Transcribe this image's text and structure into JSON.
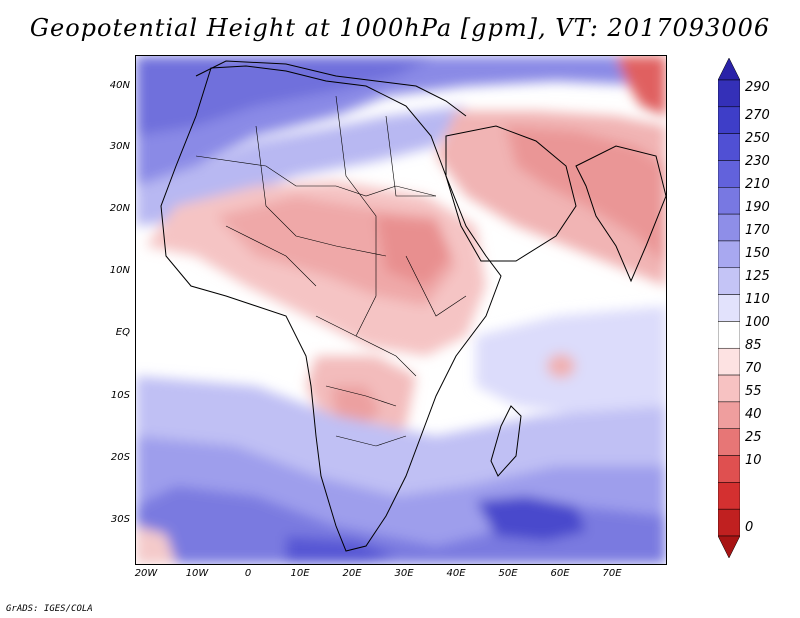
{
  "title": "Geopotential Height at 1000hPa [gpm], VT: 2017093006",
  "credit": "GrADS: IGES/COLA",
  "map": {
    "variable": "Geopotential Height at 1000hPa",
    "units": "gpm",
    "valid_time": "2017093006",
    "region": "Africa, Arabian Peninsula and South Asia",
    "lon_range": [
      -23,
      79
    ],
    "lat_range": [
      -37,
      45
    ],
    "longitude_labels": [
      "20W",
      "10W",
      "0",
      "10E",
      "20E",
      "30E",
      "40E",
      "50E",
      "60E",
      "70E"
    ],
    "longitude_values": [
      -20,
      -10,
      0,
      10,
      20,
      30,
      40,
      50,
      60,
      70
    ],
    "latitude_labels": [
      "40N",
      "30N",
      "20N",
      "10N",
      "EQ",
      "10S",
      "20S",
      "30S"
    ],
    "latitude_values": [
      40,
      30,
      20,
      10,
      0,
      -10,
      -20,
      -30
    ]
  },
  "colorbar": {
    "levels": [
      "290",
      "270",
      "250",
      "230",
      "210",
      "190",
      "170",
      "150",
      "125",
      "110",
      "100",
      "85",
      "70",
      "55",
      "40",
      "25",
      "10",
      "0"
    ],
    "colors": [
      "#2a22a8",
      "#3430b8",
      "#3e3ec8",
      "#5050d4",
      "#6262dc",
      "#7878e2",
      "#8e8ee8",
      "#a8a8f0",
      "#c4c4f6",
      "#e2e2fc",
      "#ffffff",
      "#fde2e2",
      "#f7c2c2",
      "#ef9e9e",
      "#e77676",
      "#df5050",
      "#d43030",
      "#c02020",
      "#a81414"
    ]
  }
}
